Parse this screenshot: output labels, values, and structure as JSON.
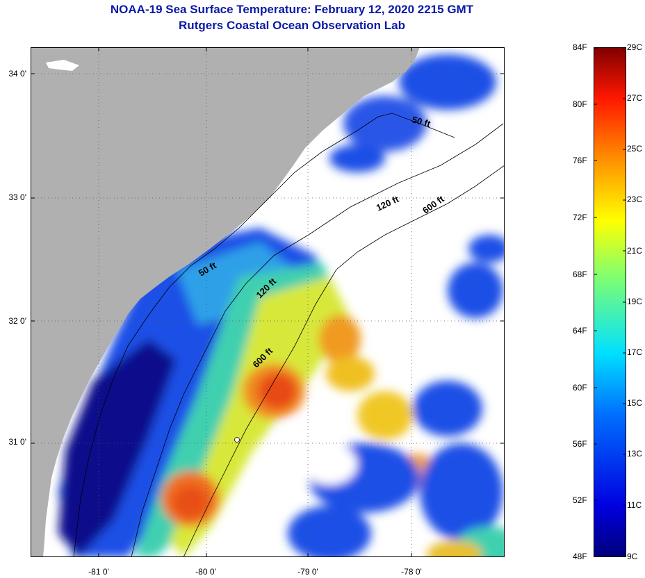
{
  "header": {
    "title": "NOAA-19 Sea Surface Temperature:  February 12, 2020 2215 GMT",
    "subtitle": "Rutgers Coastal Ocean Observation Lab"
  },
  "map": {
    "y_ticks": [
      "34 0'",
      "33 0'",
      "32 0'",
      "31 0'"
    ],
    "x_ticks": [
      "-81 0'",
      "-80 0'",
      "-79 0'",
      "-78 0'"
    ],
    "contour_labels": [
      "50 ft",
      "120 ft",
      "600 ft",
      "50 ft",
      "120 ft",
      "600 ft"
    ],
    "colors": {
      "land": "#b0b0b0",
      "cloud": "#ffffff",
      "warm": "#f0601a",
      "mid": "#f0e020",
      "cool": "#1e4fe6",
      "cold": "#0a0a8c"
    }
  },
  "colorbar": {
    "f_labels": [
      "84F",
      "80F",
      "76F",
      "72F",
      "68F",
      "64F",
      "60F",
      "56F",
      "52F",
      "48F"
    ],
    "c_labels": [
      "29C",
      "27C",
      "25C",
      "23C",
      "21C",
      "19C",
      "17C",
      "15C",
      "13C",
      "11C",
      "9C"
    ],
    "range_f": [
      48,
      84
    ],
    "range_c": [
      9,
      29
    ]
  }
}
